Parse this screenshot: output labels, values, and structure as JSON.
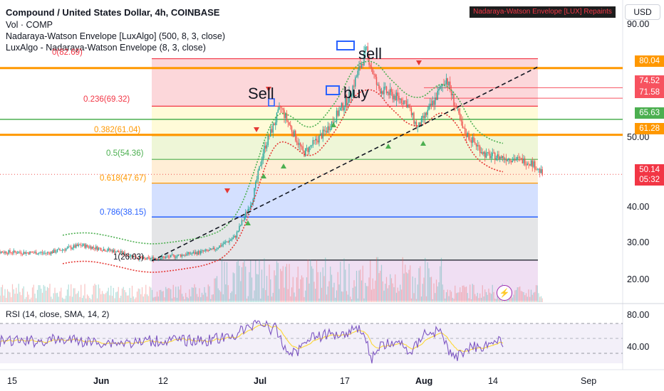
{
  "header": {
    "title": "Compound / United States Dollar, 4h, COINBASE",
    "indicators": [
      "Vol · COMP",
      "Nadaraya-Watson Envelope [LuxAlgo] (500, 8, 3, close)",
      "LuxAlgo - Nadaraya-Watson Envelope (8, 3, close)"
    ],
    "repaint_badge": "Nadaraya-Watson Envelope [LUX] Repaints",
    "currency": "USD"
  },
  "price_axis": [
    "90.00",
    "50.00",
    "40.00",
    "30.00",
    "20.00"
  ],
  "price_tags": [
    {
      "label": "80.04",
      "color": "#ff9800"
    },
    {
      "label": "74.52",
      "color": "#f7525f"
    },
    {
      "label": "71.58",
      "color": "#f7525f"
    },
    {
      "label": "65.63",
      "color": "#4caf50"
    },
    {
      "label": "61.28",
      "color": "#ff9800"
    },
    {
      "label": "50.14",
      "color": "#f23645"
    },
    {
      "label": "05:32",
      "color": "#f23645"
    }
  ],
  "fib_levels": [
    {
      "label": "0(82.69)",
      "color": "#f23645"
    },
    {
      "label": "0.236(69.32)",
      "color": "#f23645"
    },
    {
      "label": "0.382(61.04)",
      "color": "#ff9800"
    },
    {
      "label": "0.5(54.36)",
      "color": "#4caf50"
    },
    {
      "label": "0.618(47.67)",
      "color": "#ff9800"
    },
    {
      "label": "0.786(38.15)",
      "color": "#2962ff"
    },
    {
      "label": "1(26.03)",
      "color": "#131722"
    }
  ],
  "annotations": {
    "sell_1": "Sell",
    "sell_2": "sell",
    "buy": "buy"
  },
  "rsi": {
    "title": "RSI (14, close, SMA, 14, 2)",
    "axis": [
      "80.00",
      "40.00"
    ]
  },
  "time_axis": [
    "15",
    "Jun",
    "12",
    "Jul",
    "17",
    "Aug",
    "14",
    "Sep"
  ],
  "colors": {
    "up": "#26a69a",
    "down": "#ef5350",
    "fib_red": "#f23645",
    "fib_orange": "#ff9800",
    "fib_green": "#4caf50",
    "fib_blue": "#2962ff",
    "rsi_line": "#7e57c2",
    "rsi_ma": "#fdd835"
  },
  "chart_data": {
    "type": "candlestick",
    "symbol": "COMP/USD",
    "timeframe": "4h",
    "ylim": [
      15,
      92
    ],
    "price_path": [
      {
        "x": "May 12",
        "y": 28.4
      },
      {
        "x": "May 22",
        "y": 28.0
      },
      {
        "x": "May 28",
        "y": 30.2
      },
      {
        "x": "Jun 3",
        "y": 28.5
      },
      {
        "x": "Jun 8",
        "y": 26.3
      },
      {
        "x": "Jun 12",
        "y": 26.8
      },
      {
        "x": "Jun 20",
        "y": 28.8
      },
      {
        "x": "Jun 24",
        "y": 32.5
      },
      {
        "x": "Jun 27",
        "y": 43.0
      },
      {
        "x": "Jun 29",
        "y": 57.0
      },
      {
        "x": "Jul 2",
        "y": 69.0
      },
      {
        "x": "Jul 6",
        "y": 56.0
      },
      {
        "x": "Jul 10",
        "y": 62.5
      },
      {
        "x": "Jul 14",
        "y": 72.0
      },
      {
        "x": "Jul 17",
        "y": 85.0
      },
      {
        "x": "Jul 19",
        "y": 74.5
      },
      {
        "x": "Jul 24",
        "y": 70.5
      },
      {
        "x": "Jul 26",
        "y": 63.0
      },
      {
        "x": "Jul 29",
        "y": 71.0
      },
      {
        "x": "Jul 31",
        "y": 77.5
      },
      {
        "x": "Aug 3",
        "y": 62.5
      },
      {
        "x": "Aug 7",
        "y": 55.5
      },
      {
        "x": "Aug 12",
        "y": 54.5
      },
      {
        "x": "Aug 15",
        "y": 53.5
      },
      {
        "x": "Aug 17",
        "y": 50.14
      }
    ],
    "horizontal_levels": [
      80.04,
      74.52,
      71.58,
      65.63,
      61.28
    ],
    "fibonacci": {
      "0": 82.69,
      "0.236": 69.32,
      "0.382": 61.04,
      "0.5": 54.36,
      "0.618": 47.67,
      "0.786": 38.15,
      "1": 26.03
    },
    "last_price": 50.14,
    "rsi_last": 38
  }
}
